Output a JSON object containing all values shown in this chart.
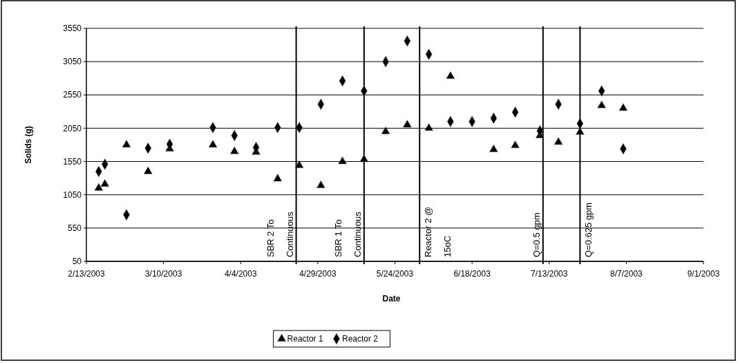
{
  "chart_data": {
    "type": "scatter",
    "xlabel": "Date",
    "ylabel": "Solids (g)",
    "xlim": [
      "2003-02-13",
      "2003-09-01"
    ],
    "xticks": [
      {
        "value": "2003-02-13",
        "label": "2/13/2003"
      },
      {
        "value": "2003-03-10",
        "label": "3/10/2003"
      },
      {
        "value": "2003-04-04",
        "label": "4/4/2003"
      },
      {
        "value": "2003-04-29",
        "label": "4/29/2003"
      },
      {
        "value": "2003-05-24",
        "label": "5/24/2003"
      },
      {
        "value": "2003-06-18",
        "label": "6/18/2003"
      },
      {
        "value": "2003-07-13",
        "label": "7/13/2003"
      },
      {
        "value": "2003-08-07",
        "label": "8/7/2003"
      },
      {
        "value": "2003-09-01",
        "label": "9/1/2003"
      }
    ],
    "ylim": [
      50,
      3550
    ],
    "yticks": [
      50,
      550,
      1050,
      1550,
      2050,
      2550,
      3050,
      3550
    ],
    "grid": "y",
    "legend": "bottom",
    "series": [
      {
        "name": "Reactor 1",
        "color": "#000000",
        "marker": "triangle",
        "x": [
          "2003-02-17",
          "2003-02-19",
          "2003-02-26",
          "2003-03-05",
          "2003-03-12",
          "2003-03-26",
          "2003-04-02",
          "2003-04-09",
          "2003-04-16",
          "2003-04-23",
          "2003-04-30",
          "2003-05-07",
          "2003-05-14",
          "2003-05-21",
          "2003-05-28",
          "2003-06-04",
          "2003-06-11",
          "2003-06-25",
          "2003-07-02",
          "2003-07-10",
          "2003-07-16",
          "2003-07-23",
          "2003-07-30",
          "2003-08-06"
        ],
        "values": [
          1150,
          1210,
          1800,
          1400,
          1740,
          1800,
          1700,
          1690,
          1290,
          1490,
          1190,
          1550,
          1580,
          2000,
          2100,
          2050,
          2830,
          1730,
          1790,
          1940,
          1840,
          1990,
          2390,
          2350
        ]
      },
      {
        "name": "Reactor 2",
        "color": "#000000",
        "marker": "diamond",
        "x": [
          "2003-02-17",
          "2003-02-19",
          "2003-02-26",
          "2003-03-05",
          "2003-03-12",
          "2003-03-26",
          "2003-04-02",
          "2003-04-09",
          "2003-04-16",
          "2003-04-23",
          "2003-04-30",
          "2003-05-07",
          "2003-05-14",
          "2003-05-21",
          "2003-05-28",
          "2003-06-04",
          "2003-06-11",
          "2003-06-18",
          "2003-06-25",
          "2003-07-02",
          "2003-07-10",
          "2003-07-16",
          "2003-07-23",
          "2003-07-30",
          "2003-08-06"
        ],
        "values": [
          1400,
          1510,
          750,
          1750,
          1810,
          2060,
          1940,
          1760,
          2060,
          2060,
          2410,
          2760,
          2610,
          3050,
          3360,
          3160,
          2150,
          2150,
          2200,
          2290,
          2010,
          2410,
          2120,
          2610,
          1740
        ]
      }
    ],
    "ref_lines": [
      {
        "axis": "x",
        "value": "2003-04-22",
        "label": "SBR 2 To\nContinuous",
        "color": "#000000"
      },
      {
        "axis": "x",
        "value": "2003-05-14",
        "label": "SBR 1 To\nContinuous",
        "color": "#000000"
      },
      {
        "axis": "x",
        "value": "2003-06-01",
        "label": "Reactor 2 @\n15oC",
        "color": "#000000"
      },
      {
        "axis": "x",
        "value": "2003-07-11",
        "label": "Q=0.5 gpm",
        "color": "#000000"
      },
      {
        "axis": "x",
        "value": "2003-07-23",
        "label": "Q=0.625 gpm",
        "color": "#000000"
      }
    ]
  }
}
